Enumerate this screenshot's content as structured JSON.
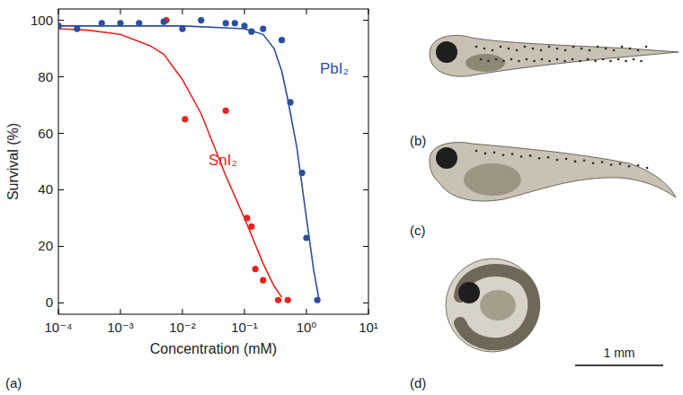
{
  "chart_data": {
    "type": "scatter",
    "xlabel": "Concentration (mM)",
    "ylabel": "Survival (%)",
    "log": "x",
    "grid": false,
    "xlim": [
      0.0001,
      10
    ],
    "ylim": [
      -4,
      104
    ],
    "xticks": [
      {
        "value": 0.0001,
        "label": "10⁻⁴"
      },
      {
        "value": 0.001,
        "label": "10⁻³"
      },
      {
        "value": 0.01,
        "label": "10⁻²"
      },
      {
        "value": 0.1,
        "label": "10⁻¹"
      },
      {
        "value": 1,
        "label": "10⁰"
      },
      {
        "value": 10,
        "label": "10¹"
      }
    ],
    "yticks": [
      0,
      20,
      40,
      60,
      80,
      100
    ],
    "series": [
      {
        "name": "SnI₂",
        "color": "#e8231f",
        "type": "scatter",
        "marker": "circle",
        "x": [
          0.0001,
          0.0055,
          0.011,
          0.05,
          0.11,
          0.13,
          0.15,
          0.2,
          0.35,
          0.5
        ],
        "values": [
          98,
          100,
          65,
          68,
          30,
          27,
          12,
          8,
          1,
          1
        ]
      },
      {
        "color": "#e8231f",
        "type": "line",
        "line_style": "solid",
        "x": [
          0.0001,
          0.0003,
          0.001,
          0.003,
          0.005,
          0.01,
          0.02,
          0.05,
          0.1,
          0.2,
          0.3,
          0.4
        ],
        "values": [
          97,
          96.5,
          95,
          91,
          88,
          79,
          67,
          45,
          30,
          14,
          6,
          2
        ]
      },
      {
        "name": "PbI₂",
        "color": "#2b4ea2",
        "type": "scatter",
        "marker": "circle",
        "x": [
          0.0001,
          0.0002,
          0.0005,
          0.001,
          0.002,
          0.005,
          0.01,
          0.02,
          0.05,
          0.07,
          0.1,
          0.13,
          0.2,
          0.4,
          0.55,
          0.85,
          1.0,
          1.5
        ],
        "values": [
          98,
          97,
          99,
          99,
          99,
          99.5,
          97,
          100,
          99,
          99,
          98,
          96,
          97,
          93,
          71,
          46,
          23,
          1
        ]
      },
      {
        "color": "#2b4ea2",
        "type": "line",
        "line_style": "solid",
        "x": [
          0.0001,
          0.001,
          0.01,
          0.1,
          0.2,
          0.3,
          0.4,
          0.5,
          0.7,
          1.0,
          1.3,
          1.6
        ],
        "values": [
          98,
          98,
          98,
          97,
          95,
          90,
          82,
          72,
          55,
          30,
          12,
          1
        ]
      }
    ]
  },
  "panel_label": "(a)",
  "images": [
    {
      "label": "(b)"
    },
    {
      "label": "(c)"
    },
    {
      "label": "(d)"
    }
  ],
  "scale_bar": "1 mm"
}
